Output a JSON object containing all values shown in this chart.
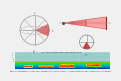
{
  "title": "Figure 10 - Data model and range view for scanning LiDAR (Velodyne UltraPuck). The distance data have been coloured according to distance.",
  "fig_bg": "#f0f0f0",
  "top_bg": "#f5f5f5",
  "sphere_circle_color": "#aaaaaa",
  "sphere_line_color": "#888888",
  "sphere_red_color": "#cc1111",
  "cone_fill_color": "#ff8888",
  "cone_edge_color": "#cc0000",
  "polar2_fill": "#cc1111",
  "polar2_circle_color": "#888888",
  "teal_bg": "#99dddd",
  "teal_grid_color": "#66bbbb",
  "teal_dark": "#337777",
  "heatmap_colors": [
    "#000033",
    "#000077",
    "#0033aa",
    "#0077cc",
    "#00bbaa",
    "#33cc44",
    "#aacc00",
    "#ffcc00",
    "#ff6600",
    "#cc0000",
    "#ff3333"
  ],
  "caption_color": "#333333",
  "bottom_bg": "#002255"
}
